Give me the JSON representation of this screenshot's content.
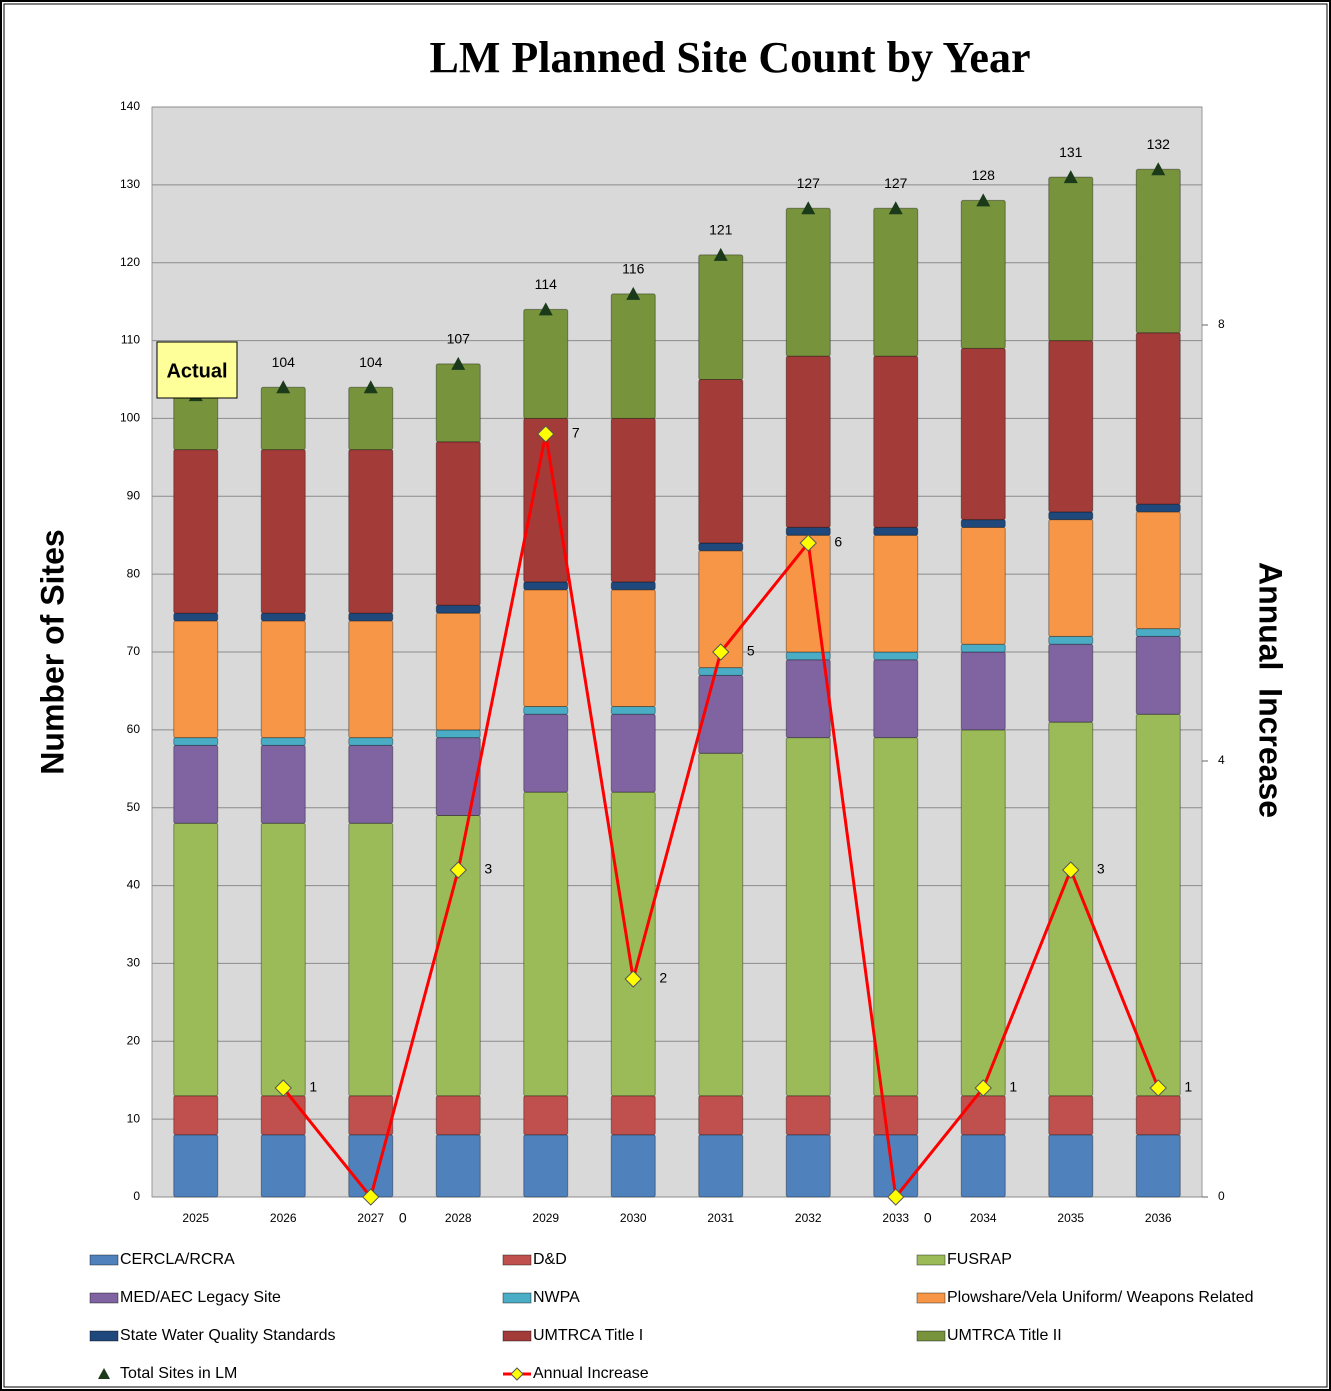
{
  "chart_data": {
    "type": "bar",
    "stacked": true,
    "title": "LM Planned Site Count by Year",
    "y_label": "Number of Sites",
    "y2_label": "Annual  Increase",
    "annotation": "Actual",
    "categories": [
      "2025",
      "2026",
      "2027",
      "2028",
      "2029",
      "2030",
      "2031",
      "2032",
      "2033",
      "2034",
      "2035",
      "2036"
    ],
    "ylim": [
      0,
      140
    ],
    "yticks": [
      0,
      10,
      20,
      30,
      40,
      50,
      60,
      70,
      80,
      90,
      100,
      110,
      120,
      130,
      140
    ],
    "y2lim": [
      0,
      10
    ],
    "y2ticks": [
      0,
      4,
      8
    ],
    "grid": true,
    "series": [
      {
        "name": "CERCLA/RCRA",
        "color": "#4f81bd",
        "values": [
          8,
          8,
          8,
          8,
          8,
          8,
          8,
          8,
          8,
          8,
          8,
          8
        ]
      },
      {
        "name": "D&D",
        "color": "#c0504d",
        "values": [
          5,
          5,
          5,
          5,
          5,
          5,
          5,
          5,
          5,
          5,
          5,
          5
        ]
      },
      {
        "name": "FUSRAP",
        "color": "#9bbb59",
        "values": [
          35,
          35,
          35,
          36,
          39,
          39,
          44,
          46,
          46,
          47,
          48,
          49
        ]
      },
      {
        "name": "MED/AEC Legacy Site",
        "color": "#8064a2",
        "values": [
          10,
          10,
          10,
          10,
          10,
          10,
          10,
          10,
          10,
          10,
          10,
          10
        ]
      },
      {
        "name": "NWPA",
        "color": "#4bacc6",
        "values": [
          1,
          1,
          1,
          1,
          1,
          1,
          1,
          1,
          1,
          1,
          1,
          1
        ]
      },
      {
        "name": "Plowshare/Vela Uniform/ Weapons Related",
        "color": "#f79646",
        "values": [
          15,
          15,
          15,
          15,
          15,
          15,
          15,
          15,
          15,
          15,
          15,
          15
        ]
      },
      {
        "name": "State Water Quality Standards",
        "color": "#1f497d",
        "values": [
          1,
          1,
          1,
          1,
          1,
          1,
          1,
          1,
          1,
          1,
          1,
          1
        ]
      },
      {
        "name": "UMTRCA Title I",
        "color": "#a33b39",
        "values": [
          21,
          21,
          21,
          21,
          21,
          21,
          21,
          22,
          22,
          22,
          22,
          22
        ]
      },
      {
        "name": "UMTRCA Title II",
        "color": "#77933c",
        "values": [
          7,
          8,
          8,
          10,
          14,
          16,
          16,
          19,
          19,
          19,
          21,
          21
        ]
      },
      {
        "name": "Total Sites in LM",
        "type": "marker",
        "color": "#1a3a1a",
        "values": [
          103,
          104,
          104,
          107,
          114,
          116,
          121,
          127,
          127,
          128,
          131,
          132
        ]
      },
      {
        "name": "Annual Increase",
        "type": "line",
        "axis": "y2",
        "color": "#ff0000",
        "marker_color": "#ffff00",
        "values": [
          null,
          1,
          0,
          3,
          7,
          2,
          5,
          6,
          0,
          1,
          3,
          1
        ]
      }
    ]
  }
}
